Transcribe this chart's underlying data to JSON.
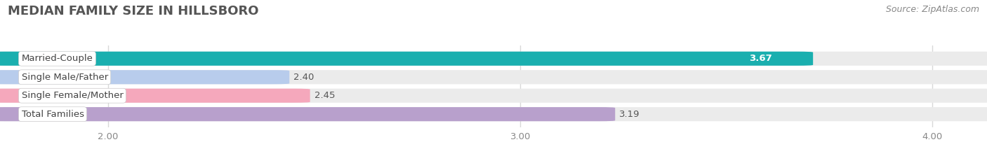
{
  "title": "MEDIAN FAMILY SIZE IN HILLSBORO",
  "source": "Source: ZipAtlas.com",
  "categories": [
    "Married-Couple",
    "Single Male/Father",
    "Single Female/Mother",
    "Total Families"
  ],
  "values": [
    3.67,
    2.4,
    2.45,
    3.19
  ],
  "bar_colors": [
    "#1aafaf",
    "#b8ccec",
    "#f5a8bc",
    "#b8a0cc"
  ],
  "value_inside": [
    true,
    false,
    false,
    false
  ],
  "value_colors": [
    "#ffffff",
    "#555555",
    "#555555",
    "#555555"
  ],
  "x_min": 1.75,
  "x_max": 4.12,
  "xticks": [
    2.0,
    3.0,
    4.0
  ],
  "xtick_labels": [
    "2.00",
    "3.00",
    "4.00"
  ],
  "bar_height": 0.68,
  "bar_gap": 1.0,
  "label_fontsize": 9.5,
  "value_fontsize": 9.5,
  "title_fontsize": 13,
  "source_fontsize": 9,
  "background_color": "#ffffff",
  "bar_bg_color": "#ebebeb",
  "grid_color": "#d8d8d8"
}
